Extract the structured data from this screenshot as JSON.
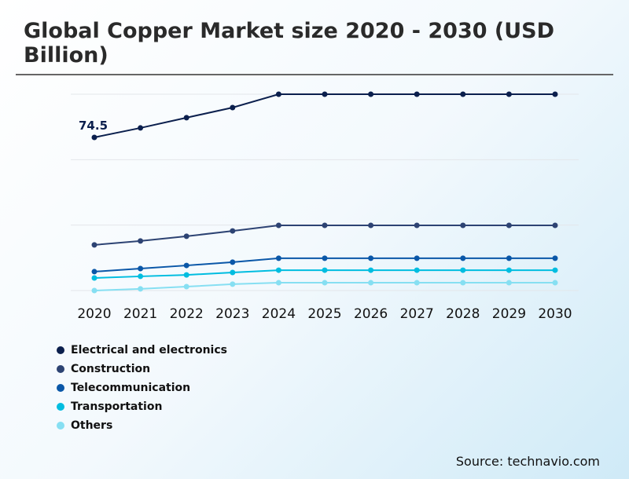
{
  "title": "Global Copper Market size 2020 - 2030 (USD Billion)",
  "source": "Source: technavio.com",
  "chart_data": {
    "type": "line",
    "title": "Global Copper Market size 2020 - 2030 (USD Billion)",
    "categories": [
      "2020",
      "2021",
      "2022",
      "2023",
      "2024",
      "2025",
      "2026",
      "2027",
      "2028",
      "2029",
      "2030"
    ],
    "ylim": [
      0,
      95.5
    ],
    "grid": true,
    "legend": "bottom-left",
    "annotations": [
      {
        "series": 0,
        "index": 0,
        "text": "74.5"
      }
    ],
    "series": [
      {
        "name": "Electrical and electronics",
        "color": "#0b1f4d",
        "values": [
          74.5,
          79.1,
          84.1,
          89.0,
          95.5,
          95.5,
          95.5,
          95.5,
          95.5,
          95.5,
          95.5
        ]
      },
      {
        "name": "Construction",
        "color": "#2d4373",
        "values": [
          22.2,
          24.1,
          26.4,
          29.0,
          31.7,
          31.7,
          31.7,
          31.7,
          31.7,
          31.7,
          31.7
        ]
      },
      {
        "name": "Telecommunication",
        "color": "#0a57a8",
        "values": [
          9.2,
          10.7,
          12.2,
          13.8,
          15.7,
          15.7,
          15.7,
          15.7,
          15.7,
          15.7,
          15.7
        ]
      },
      {
        "name": "Transportation",
        "color": "#00bde0",
        "values": [
          6.1,
          6.9,
          7.6,
          8.8,
          9.9,
          9.9,
          9.9,
          9.9,
          9.9,
          9.9,
          9.9
        ]
      },
      {
        "name": "Others",
        "color": "#86dff2",
        "values": [
          0,
          0.8,
          1.9,
          3.1,
          3.8,
          3.8,
          3.8,
          3.8,
          3.8,
          3.8,
          3.8
        ]
      }
    ]
  }
}
